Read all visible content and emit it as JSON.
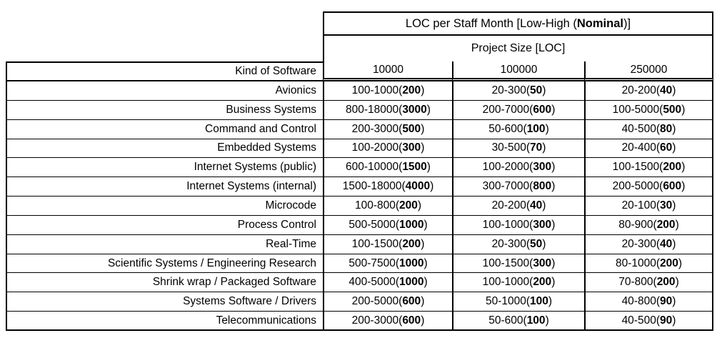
{
  "table": {
    "title": {
      "pre": "LOC per Staff Month [Low-High (",
      "bold": "Nominal",
      "post": ")]"
    },
    "subtitle": "Project Size [LOC]",
    "corner_label": "Kind of Software",
    "columns": [
      "10000",
      "100000",
      "250000"
    ],
    "rows": [
      {
        "label": "Avionics",
        "cells": [
          {
            "pre": "100-1000(",
            "nominal": "200",
            "post": ")"
          },
          {
            "pre": "20-300(",
            "nominal": "50",
            "post": ")"
          },
          {
            "pre": "20-200(",
            "nominal": "40",
            "post": ")"
          }
        ]
      },
      {
        "label": "Business Systems",
        "cells": [
          {
            "pre": "800-18000(",
            "nominal": "3000",
            "post": ")"
          },
          {
            "pre": "200-7000(",
            "nominal": "600",
            "post": ")"
          },
          {
            "pre": "100-5000(",
            "nominal": "500",
            "post": ")"
          }
        ]
      },
      {
        "label": "Command and Control",
        "cells": [
          {
            "pre": "200-3000(",
            "nominal": "500",
            "post": ")"
          },
          {
            "pre": "50-600(",
            "nominal": "100",
            "post": ")"
          },
          {
            "pre": "40-500(",
            "nominal": "80",
            "post": ")"
          }
        ]
      },
      {
        "label": "Embedded Systems",
        "cells": [
          {
            "pre": "100-2000(",
            "nominal": "300",
            "post": ")"
          },
          {
            "pre": "30-500(",
            "nominal": "70",
            "post": ")"
          },
          {
            "pre": "20-400(",
            "nominal": "60",
            "post": ")"
          }
        ]
      },
      {
        "label": "Internet Systems (public)",
        "cells": [
          {
            "pre": "600-10000(",
            "nominal": "1500",
            "post": ")"
          },
          {
            "pre": "100-2000(",
            "nominal": "300",
            "post": ")"
          },
          {
            "pre": "100-1500(",
            "nominal": "200",
            "post": ")"
          }
        ]
      },
      {
        "label": "Internet Systems (internal)",
        "cells": [
          {
            "pre": "1500-18000(",
            "nominal": "4000",
            "post": ")"
          },
          {
            "pre": "300-7000(",
            "nominal": "800",
            "post": ")"
          },
          {
            "pre": "200-5000(",
            "nominal": "600",
            "post": ")"
          }
        ]
      },
      {
        "label": "Microcode",
        "cells": [
          {
            "pre": "100-800(",
            "nominal": "200",
            "post": ")"
          },
          {
            "pre": "20-200(",
            "nominal": "40",
            "post": ")"
          },
          {
            "pre": "20-100(",
            "nominal": "30",
            "post": ")"
          }
        ]
      },
      {
        "label": "Process Control",
        "cells": [
          {
            "pre": "500-5000(",
            "nominal": "1000",
            "post": ")"
          },
          {
            "pre": "100-1000(",
            "nominal": "300",
            "post": ")"
          },
          {
            "pre": "80-900(",
            "nominal": "200",
            "post": ")"
          }
        ]
      },
      {
        "label": "Real-Time",
        "cells": [
          {
            "pre": "100-1500(",
            "nominal": "200",
            "post": ")"
          },
          {
            "pre": "20-300(",
            "nominal": "50",
            "post": ")"
          },
          {
            "pre": "20-300(",
            "nominal": "40",
            "post": ")"
          }
        ]
      },
      {
        "label": "Scientific Systems / Engineering Research",
        "cells": [
          {
            "pre": "500-7500(",
            "nominal": "1000",
            "post": ")"
          },
          {
            "pre": "100-1500(",
            "nominal": "300",
            "post": ")"
          },
          {
            "pre": "80-1000(",
            "nominal": "200",
            "post": ")"
          }
        ]
      },
      {
        "label": "Shrink wrap / Packaged Software",
        "cells": [
          {
            "pre": "400-5000(",
            "nominal": "1000",
            "post": ")"
          },
          {
            "pre": "100-1000(",
            "nominal": "200",
            "post": ")"
          },
          {
            "pre": "70-800(",
            "nominal": "200",
            "post": ")"
          }
        ]
      },
      {
        "label": "Systems Software / Drivers",
        "cells": [
          {
            "pre": "200-5000(",
            "nominal": "600",
            "post": ")"
          },
          {
            "pre": "50-1000(",
            "nominal": "100",
            "post": ")"
          },
          {
            "pre": "40-800(",
            "nominal": "90",
            "post": ")"
          }
        ]
      },
      {
        "label": "Telecommunications",
        "cells": [
          {
            "pre": "200-3000(",
            "nominal": "600",
            "post": ")"
          },
          {
            "pre": "50-600(",
            "nominal": "100",
            "post": ")"
          },
          {
            "pre": "40-500(",
            "nominal": "90",
            "post": ")"
          }
        ]
      }
    ]
  }
}
